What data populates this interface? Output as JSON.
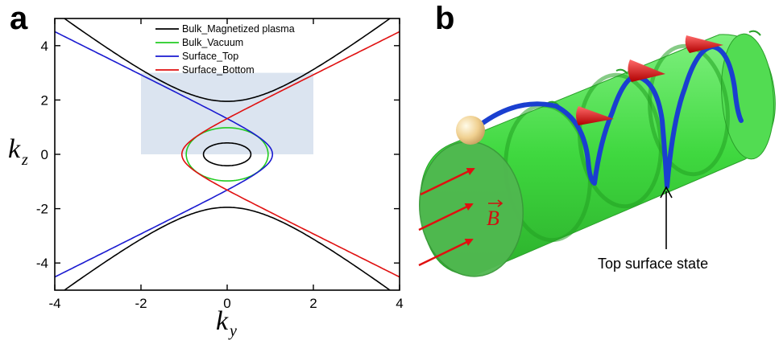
{
  "panel_a": {
    "letter": "a",
    "chart_data": {
      "type": "line",
      "xlabel_main": "k",
      "xlabel_sub": "y",
      "ylabel_main": "k",
      "ylabel_sub": "z",
      "xlim": [
        -4,
        4
      ],
      "ylim": [
        -5,
        5
      ],
      "x_ticks": [
        "-4",
        "-2",
        "0",
        "2",
        "4"
      ],
      "y_ticks": [
        "-4",
        "-2",
        "0",
        "2",
        "4"
      ],
      "legend_position": "top-center",
      "shaded_region": {
        "x": [
          -2,
          2
        ],
        "y": [
          0,
          3
        ],
        "color": "#dbe4f0"
      },
      "series": [
        {
          "name": "Bulk_Magnetized plasma",
          "color": "#000000",
          "curves": [
            "hyperbola a=1.95 b=1.6 upper and lower branches",
            "closed ellipse rx=0.55 ry=0.42 centered at origin"
          ]
        },
        {
          "name": "Bulk_Vacuum",
          "color": "#22cc22",
          "curves": [
            "closed ellipse rx=0.95 ry=0.98 centered at origin"
          ]
        },
        {
          "name": "Surface_Top",
          "color": "#1a1ad0",
          "curves": [
            "branch from upper-left through (1.05, 0) down to lower-left"
          ]
        },
        {
          "name": "Surface_Bottom",
          "color": "#e01010",
          "curves": [
            "branch from upper-right through (-1.05, 0) down to lower-right"
          ]
        }
      ]
    }
  },
  "panel_b": {
    "letter": "b",
    "field_label": "B",
    "annotation": "Top surface state",
    "colors": {
      "cylinder": "#3ee03e",
      "helix": "#1a3fd0",
      "arrow": "#e01010",
      "sphere": "#f2dca0"
    }
  }
}
